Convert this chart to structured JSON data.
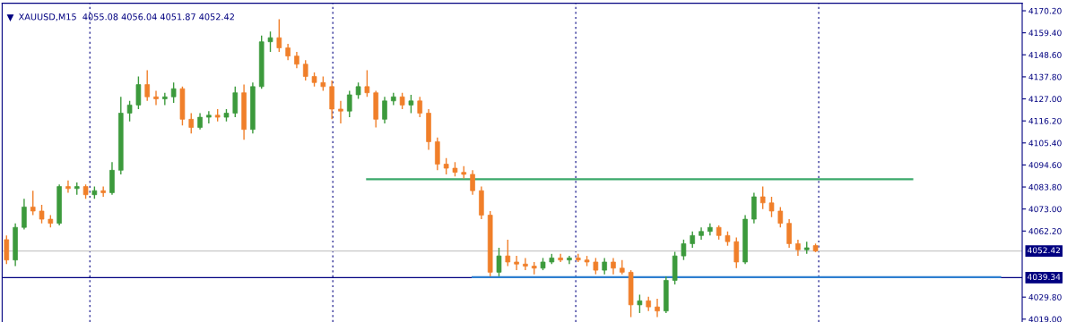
{
  "chart_data": {
    "type": "candlestick",
    "title": "XAUUSD,M15  4055.08 4056.04 4051.87 4052.42",
    "categories": [
      null,
      null,
      null,
      null,
      null,
      null,
      null,
      null,
      null,
      null,
      null,
      null,
      null,
      null,
      null,
      null,
      null,
      null,
      null,
      null,
      null,
      null,
      null,
      null,
      null,
      null,
      null,
      null,
      null,
      null,
      null,
      null,
      null,
      null,
      null,
      null,
      null,
      null,
      null,
      null,
      null,
      null,
      null,
      null,
      null,
      null,
      null,
      null,
      null,
      null,
      null,
      null,
      null,
      null,
      null,
      null,
      null,
      null,
      null,
      null,
      null,
      null,
      null,
      null,
      null,
      null,
      null,
      null,
      null,
      null,
      null,
      null,
      null,
      null,
      null,
      null,
      null,
      null,
      null,
      null,
      null,
      null,
      null,
      null,
      null,
      null,
      null,
      null,
      null,
      null,
      null,
      null,
      null,
      null,
      null,
      null,
      null,
      null,
      null,
      null,
      null,
      null,
      null,
      null,
      null,
      null,
      null,
      null,
      null,
      null,
      null,
      null,
      null,
      null,
      null,
      null
    ],
    "ohlc": [
      [
        4058,
        4060,
        4046,
        4048
      ],
      [
        4048,
        4066,
        4045,
        4064
      ],
      [
        4064,
        4078,
        4063,
        4074
      ],
      [
        4074,
        4082,
        4070,
        4072
      ],
      [
        4072,
        4075,
        4066,
        4068
      ],
      [
        4068,
        4070,
        4064,
        4066
      ],
      [
        4066,
        4085,
        4065,
        4084
      ],
      [
        4084,
        4087,
        4081,
        4083
      ],
      [
        4083,
        4086,
        4080,
        4084
      ],
      [
        4084,
        4085,
        4078,
        4080
      ],
      [
        4080,
        4084,
        4078,
        4082
      ],
      [
        4082,
        4084,
        4079,
        4081
      ],
      [
        4081,
        4096,
        4080,
        4092
      ],
      [
        4092,
        4128,
        4090,
        4120
      ],
      [
        4120,
        4126,
        4116,
        4124
      ],
      [
        4124,
        4138,
        4122,
        4134
      ],
      [
        4134,
        4141,
        4126,
        4128
      ],
      [
        4128,
        4131,
        4124,
        4127
      ],
      [
        4127,
        4130,
        4124,
        4128
      ],
      [
        4128,
        4135,
        4125,
        4132
      ],
      [
        4132,
        4133,
        4114,
        4117
      ],
      [
        4117,
        4120,
        4110,
        4113
      ],
      [
        4113,
        4120,
        4112,
        4118
      ],
      [
        4118,
        4121,
        4115,
        4119
      ],
      [
        4119,
        4122,
        4116,
        4118
      ],
      [
        4118,
        4122,
        4116,
        4120
      ],
      [
        4120,
        4133,
        4118,
        4130
      ],
      [
        4130,
        4134,
        4107,
        4112
      ],
      [
        4112,
        4135,
        4110,
        4133
      ],
      [
        4133,
        4158,
        4132,
        4155
      ],
      [
        4155,
        4160,
        4150,
        4157
      ],
      [
        4157,
        4166,
        4150,
        4152
      ],
      [
        4152,
        4154,
        4146,
        4148
      ],
      [
        4148,
        4150,
        4142,
        4144
      ],
      [
        4144,
        4146,
        4136,
        4138
      ],
      [
        4138,
        4140,
        4133,
        4135
      ],
      [
        4135,
        4138,
        4131,
        4133
      ],
      [
        4133,
        4136,
        4117,
        4122
      ],
      [
        4122,
        4126,
        4115,
        4121
      ],
      [
        4121,
        4131,
        4118,
        4129
      ],
      [
        4129,
        4135,
        4127,
        4133
      ],
      [
        4133,
        4141,
        4128,
        4130
      ],
      [
        4130,
        4131,
        4113,
        4117
      ],
      [
        4117,
        4128,
        4115,
        4126
      ],
      [
        4126,
        4130,
        4124,
        4128
      ],
      [
        4128,
        4130,
        4122,
        4124
      ],
      [
        4124,
        4129,
        4120,
        4126
      ],
      [
        4126,
        4128,
        4118,
        4120
      ],
      [
        4120,
        4122,
        4102,
        4106
      ],
      [
        4106,
        4108,
        4092,
        4095
      ],
      [
        4095,
        4098,
        4090,
        4093
      ],
      [
        4093,
        4096,
        4089,
        4091
      ],
      [
        4091,
        4094,
        4088,
        4090
      ],
      [
        4090,
        4092,
        4080,
        4082
      ],
      [
        4082,
        4084,
        4068,
        4070
      ],
      [
        4070,
        4072,
        4040,
        4042
      ],
      [
        4042,
        4054,
        4040,
        4050
      ],
      [
        4050,
        4058,
        4045,
        4047
      ],
      [
        4047,
        4050,
        4043,
        4046
      ],
      [
        4046,
        4049,
        4043,
        4045
      ],
      [
        4045,
        4047,
        4041,
        4044
      ],
      [
        4044,
        4049,
        4043,
        4047
      ],
      [
        4047,
        4051,
        4046,
        4049
      ],
      [
        4049,
        4051,
        4047,
        4048
      ],
      [
        4048,
        4050,
        4046,
        4049
      ],
      [
        4049,
        4051,
        4047,
        4048
      ],
      [
        4048,
        4050,
        4045,
        4047
      ],
      [
        4047,
        4049,
        4041,
        4043
      ],
      [
        4043,
        4049,
        4041,
        4047
      ],
      [
        4047,
        4049,
        4041,
        4044
      ],
      [
        4044,
        4048,
        4041,
        4042
      ],
      [
        4042,
        4043,
        4020,
        4026
      ],
      [
        4026,
        4031,
        4022,
        4028
      ],
      [
        4028,
        4030,
        4023,
        4025
      ],
      [
        4025,
        4029,
        4020,
        4023
      ],
      [
        4023,
        4040,
        4022,
        4038
      ],
      [
        4038,
        4052,
        4036,
        4050
      ],
      [
        4050,
        4058,
        4048,
        4056
      ],
      [
        4056,
        4062,
        4054,
        4060
      ],
      [
        4060,
        4064,
        4058,
        4062
      ],
      [
        4062,
        4066,
        4060,
        4064
      ],
      [
        4064,
        4065,
        4058,
        4060
      ],
      [
        4060,
        4062,
        4055,
        4057
      ],
      [
        4057,
        4059,
        4044,
        4047
      ],
      [
        4047,
        4070,
        4046,
        4068
      ],
      [
        4068,
        4081,
        4066,
        4079
      ],
      [
        4079,
        4084,
        4073,
        4076
      ],
      [
        4076,
        4079,
        4069,
        4072
      ],
      [
        4072,
        4074,
        4064,
        4066
      ],
      [
        4066,
        4068,
        4054,
        4056
      ],
      [
        4056,
        4058,
        4050,
        4053
      ],
      [
        4053,
        4057,
        4051,
        4054
      ],
      [
        4055.08,
        4056.04,
        4051.87,
        4052.42
      ],
      null,
      null,
      null,
      null,
      null,
      null,
      null,
      null,
      null,
      null,
      null,
      null,
      null,
      null,
      null,
      null,
      null,
      null,
      null,
      null,
      null,
      null,
      null
    ],
    "colors": [
      "#f07f2a",
      "#3c9a3c",
      "#3c9a3c",
      "#f07f2a",
      "#f07f2a",
      "#f07f2a",
      "#3c9a3c",
      "#f07f2a",
      "#3c9a3c",
      "#f07f2a",
      "#3c9a3c",
      "#f07f2a",
      "#3c9a3c",
      "#3c9a3c",
      "#3c9a3c",
      "#3c9a3c",
      "#f07f2a",
      "#f07f2a",
      "#3c9a3c",
      "#3c9a3c",
      "#f07f2a",
      "#f07f2a",
      "#3c9a3c",
      "#3c9a3c",
      "#f07f2a",
      "#3c9a3c",
      "#3c9a3c",
      "#f07f2a",
      "#3c9a3c",
      "#3c9a3c",
      "#3c9a3c",
      "#f07f2a",
      "#f07f2a",
      "#f07f2a",
      "#f07f2a",
      "#f07f2a",
      "#f07f2a",
      "#f07f2a",
      "#f07f2a",
      "#3c9a3c",
      "#3c9a3c",
      "#f07f2a",
      "#f07f2a",
      "#3c9a3c",
      "#3c9a3c",
      "#f07f2a",
      "#3c9a3c",
      "#f07f2a",
      "#f07f2a",
      "#f07f2a",
      "#f07f2a",
      "#f07f2a",
      "#f07f2a",
      "#f07f2a",
      "#f07f2a",
      "#f07f2a",
      "#3c9a3c",
      "#f07f2a",
      "#f07f2a",
      "#f07f2a",
      "#f07f2a",
      "#3c9a3c",
      "#3c9a3c",
      "#f07f2a",
      "#3c9a3c",
      "#f07f2a",
      "#f07f2a",
      "#f07f2a",
      "#3c9a3c",
      "#f07f2a",
      "#f07f2a",
      "#f07f2a",
      "#3c9a3c",
      "#f07f2a",
      "#f07f2a",
      "#3c9a3c",
      "#3c9a3c",
      "#3c9a3c",
      "#3c9a3c",
      "#3c9a3c",
      "#3c9a3c",
      "#f07f2a",
      "#f07f2a",
      "#f07f2a",
      "#3c9a3c",
      "#3c9a3c",
      "#f07f2a",
      "#f07f2a",
      "#f07f2a",
      "#f07f2a",
      "#f07f2a",
      "#3c9a3c",
      "#f07f2a",
      null,
      null,
      null,
      null,
      null,
      null,
      null,
      null,
      null,
      null,
      null,
      null,
      null,
      null,
      null,
      null,
      null,
      null,
      null,
      null,
      null,
      null,
      null
    ],
    "series": [
      {
        "type": "line",
        "color": "#3aa86a",
        "values": [
          null,
          null,
          null,
          null,
          null,
          null,
          null,
          null,
          null,
          null,
          null,
          null,
          null,
          null,
          null,
          null,
          null,
          null,
          null,
          null,
          null,
          null,
          null,
          null,
          null,
          null,
          null,
          null,
          null,
          null,
          null,
          null,
          null,
          null,
          null,
          null,
          null,
          null,
          null,
          null,
          null,
          4087.6,
          4087.6,
          4087.6,
          4087.6,
          4087.6,
          4087.6,
          4087.6,
          4087.6,
          4087.6,
          4087.6,
          4087.6,
          4087.6,
          4087.6,
          4087.6,
          4087.6,
          4087.6,
          4087.6,
          4087.6,
          4087.6,
          4087.6,
          4087.6,
          4087.6,
          4087.6,
          4087.6,
          4087.6,
          4087.6,
          4087.6,
          4087.6,
          4087.6,
          4087.6,
          4087.6,
          4087.6,
          4087.6,
          4087.6,
          4087.6,
          4087.6,
          4087.6,
          4087.6,
          4087.6,
          4087.6,
          4087.6,
          4087.6,
          4087.6,
          4087.6,
          4087.6,
          4087.6,
          4087.6,
          4087.6,
          4087.6,
          4087.6,
          4087.6,
          4087.6,
          4087.6,
          4087.6,
          4087.6,
          4087.6,
          4087.6,
          4087.6,
          4087.6,
          4087.6,
          4087.6,
          4087.6,
          4087.6,
          null,
          null,
          null,
          null,
          null,
          null,
          null,
          null,
          null,
          null,
          null,
          null
        ]
      },
      {
        "type": "line",
        "color": "#2f7fd0",
        "values": [
          null,
          null,
          null,
          null,
          null,
          null,
          null,
          null,
          null,
          null,
          null,
          null,
          null,
          null,
          null,
          null,
          null,
          null,
          null,
          null,
          null,
          null,
          null,
          null,
          null,
          null,
          null,
          null,
          null,
          null,
          null,
          null,
          null,
          null,
          null,
          null,
          null,
          null,
          null,
          null,
          null,
          null,
          null,
          null,
          null,
          null,
          null,
          null,
          null,
          null,
          null,
          null,
          null,
          4039.6,
          4039.6,
          4039.6,
          4039.6,
          4039.6,
          4039.6,
          4039.6,
          4039.6,
          4039.6,
          4039.6,
          4039.6,
          4039.6,
          4039.6,
          4039.6,
          4039.6,
          4039.6,
          4039.6,
          4039.6,
          4039.6,
          4039.6,
          4039.6,
          4039.6,
          4039.6,
          4039.6,
          4039.6,
          4039.6,
          4039.6,
          4039.6,
          4039.6,
          4039.6,
          4039.6,
          4039.6,
          4039.6,
          4039.6,
          4039.6,
          4039.6,
          4039.6,
          4039.6,
          4039.6,
          4039.6,
          4039.6,
          4039.6,
          4039.6,
          4039.6,
          4039.6,
          4039.6,
          4039.6,
          4039.6,
          4039.6,
          4039.6,
          4039.6,
          4039.6,
          4039.6,
          4039.6,
          4039.6,
          4039.6,
          4039.6,
          4039.6,
          4039.6,
          4039.6,
          4039.6,
          null,
          null
        ]
      }
    ],
    "ylim": [
      4017.6,
      4173.9
    ],
    "yticks": [
      {
        "value": 4019.0,
        "label": "4019.00"
      },
      {
        "value": 4029.8,
        "label": "4029.80"
      },
      {
        "value": 4062.2,
        "label": "4062.20"
      },
      {
        "value": 4073.0,
        "label": "4073.00"
      },
      {
        "value": 4083.8,
        "label": "4083.80"
      },
      {
        "value": 4094.6,
        "label": "4094.60"
      },
      {
        "value": 4105.4,
        "label": "4105.40"
      },
      {
        "value": 4116.2,
        "label": "4116.20"
      },
      {
        "value": 4127.0,
        "label": "4127.00"
      },
      {
        "value": 4137.8,
        "label": "4137.80"
      },
      {
        "value": 4148.6,
        "label": "4148.60"
      },
      {
        "value": 4159.4,
        "label": "4159.40"
      },
      {
        "value": 4170.2,
        "label": "4170.20"
      }
    ],
    "ref_lines": [
      {
        "axis": "y",
        "value": 4052.42,
        "label": "4052.42",
        "color": "#c8c8c8"
      },
      {
        "axis": "y",
        "value": 4039.34,
        "label": "4039.34",
        "color": "#000080"
      }
    ],
    "grid": false,
    "legend": false
  }
}
